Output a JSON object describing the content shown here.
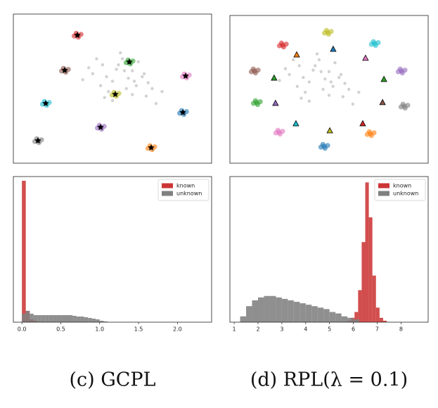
{
  "charts": [
    {
      "type": "scatter",
      "xlim": [
        0,
        100
      ],
      "ylim": [
        0,
        100
      ],
      "series": [
        {
          "color": "#7f7f7f",
          "role": "background",
          "x": [
            40,
            45,
            50,
            55,
            60,
            65,
            70,
            48,
            52,
            58,
            62,
            67,
            44,
            54,
            63,
            72,
            38,
            47,
            57,
            66,
            50,
            60,
            42,
            75,
            53,
            61,
            46,
            56,
            68,
            35
          ],
          "y": [
            60,
            66,
            55,
            70,
            62,
            58,
            50,
            48,
            63,
            57,
            52,
            45,
            52,
            74,
            68,
            40,
            64,
            58,
            50,
            60,
            42,
            46,
            70,
            48,
            66,
            55,
            44,
            62,
            54,
            56
          ]
        },
        {
          "color": "#d62728",
          "x": [
            32.3,
            34.1,
            30.7,
            32.8,
            31.7
          ],
          "y": [
            85.8,
            86.4,
            85.3,
            84.5,
            87.1
          ]
        },
        {
          "color": "#8c564b",
          "x": [
            25.9,
            27.7,
            24.3,
            26.4,
            25.3
          ],
          "y": [
            62.3,
            62.9,
            61.8,
            61.0,
            63.6
          ]
        },
        {
          "color": "#2ca02c",
          "x": [
            58.5,
            60.3,
            56.9,
            59.0,
            57.9
          ],
          "y": [
            67.9,
            68.5,
            67.4,
            66.6,
            69.2
          ]
        },
        {
          "color": "#e377c2",
          "x": [
            86.9,
            88.7,
            85.3,
            87.4,
            86.3
          ],
          "y": [
            58.5,
            59.1,
            58.0,
            57.2,
            59.8
          ]
        },
        {
          "color": "#bcbd22",
          "x": [
            51.4,
            53.2,
            49.8,
            51.9,
            50.8
          ],
          "y": [
            46.2,
            46.8,
            45.7,
            44.9,
            47.5
          ]
        },
        {
          "color": "#17becf",
          "x": [
            16.3,
            18.1,
            14.7,
            16.8,
            15.7
          ],
          "y": [
            40.1,
            40.7,
            39.6,
            38.8,
            41.4
          ]
        },
        {
          "color": "#1f77b4",
          "x": [
            85.5,
            87.3,
            83.9,
            86.0,
            84.9
          ],
          "y": [
            34.0,
            34.6,
            33.5,
            32.7,
            35.3
          ]
        },
        {
          "color": "#9467bd",
          "x": [
            44.0,
            45.8,
            42.4,
            44.5,
            43.4
          ],
          "y": [
            24.1,
            24.7,
            23.6,
            22.8,
            25.4
          ]
        },
        {
          "color": "#7f7f7f",
          "x": [
            12.4,
            14.2,
            10.8,
            12.9,
            11.8
          ],
          "y": [
            15.1,
            15.7,
            14.6,
            13.8,
            16.4
          ]
        },
        {
          "color": "#ff7f0e",
          "x": [
            69.5,
            71.3,
            67.9,
            70.0,
            68.9
          ],
          "y": [
            10.4,
            11.0,
            9.9,
            9.1,
            11.7
          ]
        }
      ],
      "prototypes": {
        "marker": "star",
        "colors": [
          "#000",
          "#000",
          "#000",
          "#000",
          "#000",
          "#000",
          "#000",
          "#000",
          "#000",
          "#000"
        ],
        "x": [
          32.3,
          25.9,
          58.5,
          86.9,
          51.4,
          16.3,
          85.5,
          44.0,
          12.4,
          69.5
        ],
        "y": [
          85.8,
          62.3,
          67.9,
          58.5,
          46.2,
          40.1,
          34.0,
          24.1,
          15.1,
          10.4
        ]
      }
    },
    {
      "type": "scatter",
      "xlim": [
        0,
        100
      ],
      "ylim": [
        0,
        100
      ],
      "series": [
        {
          "color": "#7f7f7f",
          "role": "background",
          "x": [
            30,
            35,
            40,
            45,
            50,
            55,
            60,
            38,
            42,
            48,
            52,
            57,
            34,
            44,
            53,
            62,
            28,
            37,
            47,
            56,
            40,
            50,
            32,
            65,
            43,
            51,
            36,
            46,
            58,
            25
          ],
          "y": [
            60,
            66,
            55,
            70,
            62,
            58,
            50,
            48,
            63,
            57,
            52,
            45,
            52,
            74,
            68,
            40,
            64,
            58,
            50,
            60,
            42,
            46,
            70,
            48,
            66,
            55,
            44,
            62,
            54,
            56
          ]
        },
        {
          "color": "#bcbd22",
          "x": [
            49.3,
            51.1,
            47.7,
            49.8,
            48.7
          ],
          "y": [
            88.6,
            89.2,
            88.1,
            87.3,
            89.9
          ]
        },
        {
          "color": "#17becf",
          "x": [
            73.0,
            74.8,
            71.4,
            73.5,
            72.4
          ],
          "y": [
            81.0,
            81.6,
            80.5,
            79.7,
            82.3
          ]
        },
        {
          "color": "#d62728",
          "x": [
            26.6,
            28.4,
            25.0,
            27.1,
            26.0
          ],
          "y": [
            80.0,
            80.6,
            79.5,
            78.7,
            81.3
          ]
        },
        {
          "color": "#8c564b",
          "x": [
            12.4,
            14.2,
            10.8,
            12.9,
            11.8
          ],
          "y": [
            62.4,
            63.0,
            61.9,
            61.1,
            63.7
          ]
        },
        {
          "color": "#9467bd",
          "x": [
            86.5,
            88.3,
            84.9,
            87.0,
            85.9
          ],
          "y": [
            62.4,
            63.0,
            61.9,
            61.1,
            63.7
          ]
        },
        {
          "color": "#2ca02c",
          "x": [
            13.5,
            15.3,
            11.9,
            14.0,
            12.9
          ],
          "y": [
            41.0,
            41.6,
            40.5,
            39.7,
            42.3
          ]
        },
        {
          "color": "#7f7f7f",
          "x": [
            87.9,
            89.7,
            86.3,
            88.4,
            87.3
          ],
          "y": [
            38.6,
            39.2,
            38.1,
            37.3,
            39.9
          ]
        },
        {
          "color": "#e377c2",
          "x": [
            24.8,
            26.6,
            23.2,
            25.3,
            24.2
          ],
          "y": [
            21.0,
            21.6,
            20.5,
            19.7,
            22.3
          ]
        },
        {
          "color": "#ff7f0e",
          "x": [
            70.9,
            72.7,
            69.3,
            71.4,
            70.3
          ],
          "y": [
            20.0,
            20.6,
            19.5,
            18.7,
            21.3
          ]
        },
        {
          "color": "#1f77b4",
          "x": [
            47.5,
            49.3,
            45.9,
            48.0,
            46.9
          ],
          "y": [
            11.4,
            12.0,
            10.9,
            10.1,
            12.7
          ]
        }
      ],
      "prototypes": {
        "marker": "triangle",
        "colors": [
          "#ff7f0e",
          "#1f77b4",
          "#e377c2",
          "#2ca02c",
          "#2ca02c",
          "#9467bd",
          "#8c564b",
          "#17becf",
          "#bcbd22",
          "#d62728"
        ],
        "x": [
          33.7,
          52.1,
          68.4,
          22.3,
          77.7,
          23.0,
          77.0,
          33.3,
          50.4,
          67.0
        ],
        "y": [
          73.3,
          77.1,
          71.0,
          57.6,
          56.7,
          40.5,
          41.0,
          26.7,
          21.9,
          26.7
        ]
      }
    },
    {
      "type": "histogram",
      "xlim": [
        -0.11,
        2.44
      ],
      "ylim": [
        0,
        103
      ],
      "xticks": [
        {
          "value": 0,
          "label": "0.0"
        },
        0.5,
        {
          "value": 1,
          "label": "1.0"
        },
        1.5,
        {
          "value": 2,
          "label": "2.0"
        }
      ],
      "legend": "upper right",
      "series": [
        {
          "name": "known",
          "color": "#cc3535",
          "bins": [
            0,
            0.05,
            0.1,
            0.15,
            0.2
          ],
          "values": [
            100,
            8,
            2,
            1
          ]
        },
        {
          "name": "unknown",
          "color": "#808080",
          "bins": [
            0,
            0.05,
            0.1,
            0.15,
            0.2,
            0.25,
            0.3,
            0.35,
            0.4,
            0.45,
            0.5,
            0.55,
            0.6,
            0.65,
            0.7,
            0.75,
            0.8,
            0.85,
            0.9,
            0.95,
            1.0,
            1.05,
            1.1
          ],
          "values": [
            6,
            8,
            6,
            5,
            5,
            5,
            5,
            5,
            5,
            5,
            5,
            5,
            5,
            4.5,
            4,
            4,
            3.5,
            3,
            2.5,
            2,
            1,
            0.5
          ]
        }
      ]
    },
    {
      "type": "histogram",
      "xlim": [
        0.82,
        9.14
      ],
      "ylim": [
        0,
        100
      ],
      "xticks": [
        1,
        2,
        3,
        4,
        5,
        6,
        7,
        8
      ],
      "legend": "upper right",
      "series": [
        {
          "name": "known",
          "color": "#cc3535",
          "bins": [
            5.75,
            5.9,
            6.05,
            6.2,
            6.35,
            6.5,
            6.65,
            6.8,
            6.95,
            7.1,
            7.25,
            7.4
          ],
          "values": [
            1,
            3,
            7,
            22,
            55,
            96,
            72,
            32,
            10,
            3,
            1
          ]
        },
        {
          "name": "unknown",
          "color": "#808080",
          "bins": [
            1.25,
            1.5,
            1.75,
            2,
            2.25,
            2.5,
            2.75,
            3,
            3.25,
            3.5,
            3.75,
            4,
            4.25,
            4.5,
            4.75,
            5,
            5.25,
            5.5,
            5.75,
            6,
            6.25
          ],
          "values": [
            4,
            11,
            15,
            17,
            18,
            18,
            17,
            16,
            15,
            14,
            13,
            12,
            11,
            10,
            9,
            7,
            6,
            4,
            3,
            2
          ]
        }
      ]
    }
  ],
  "captions": [
    "(c) GCPL",
    "(d) RPL(λ = 0.1)"
  ]
}
